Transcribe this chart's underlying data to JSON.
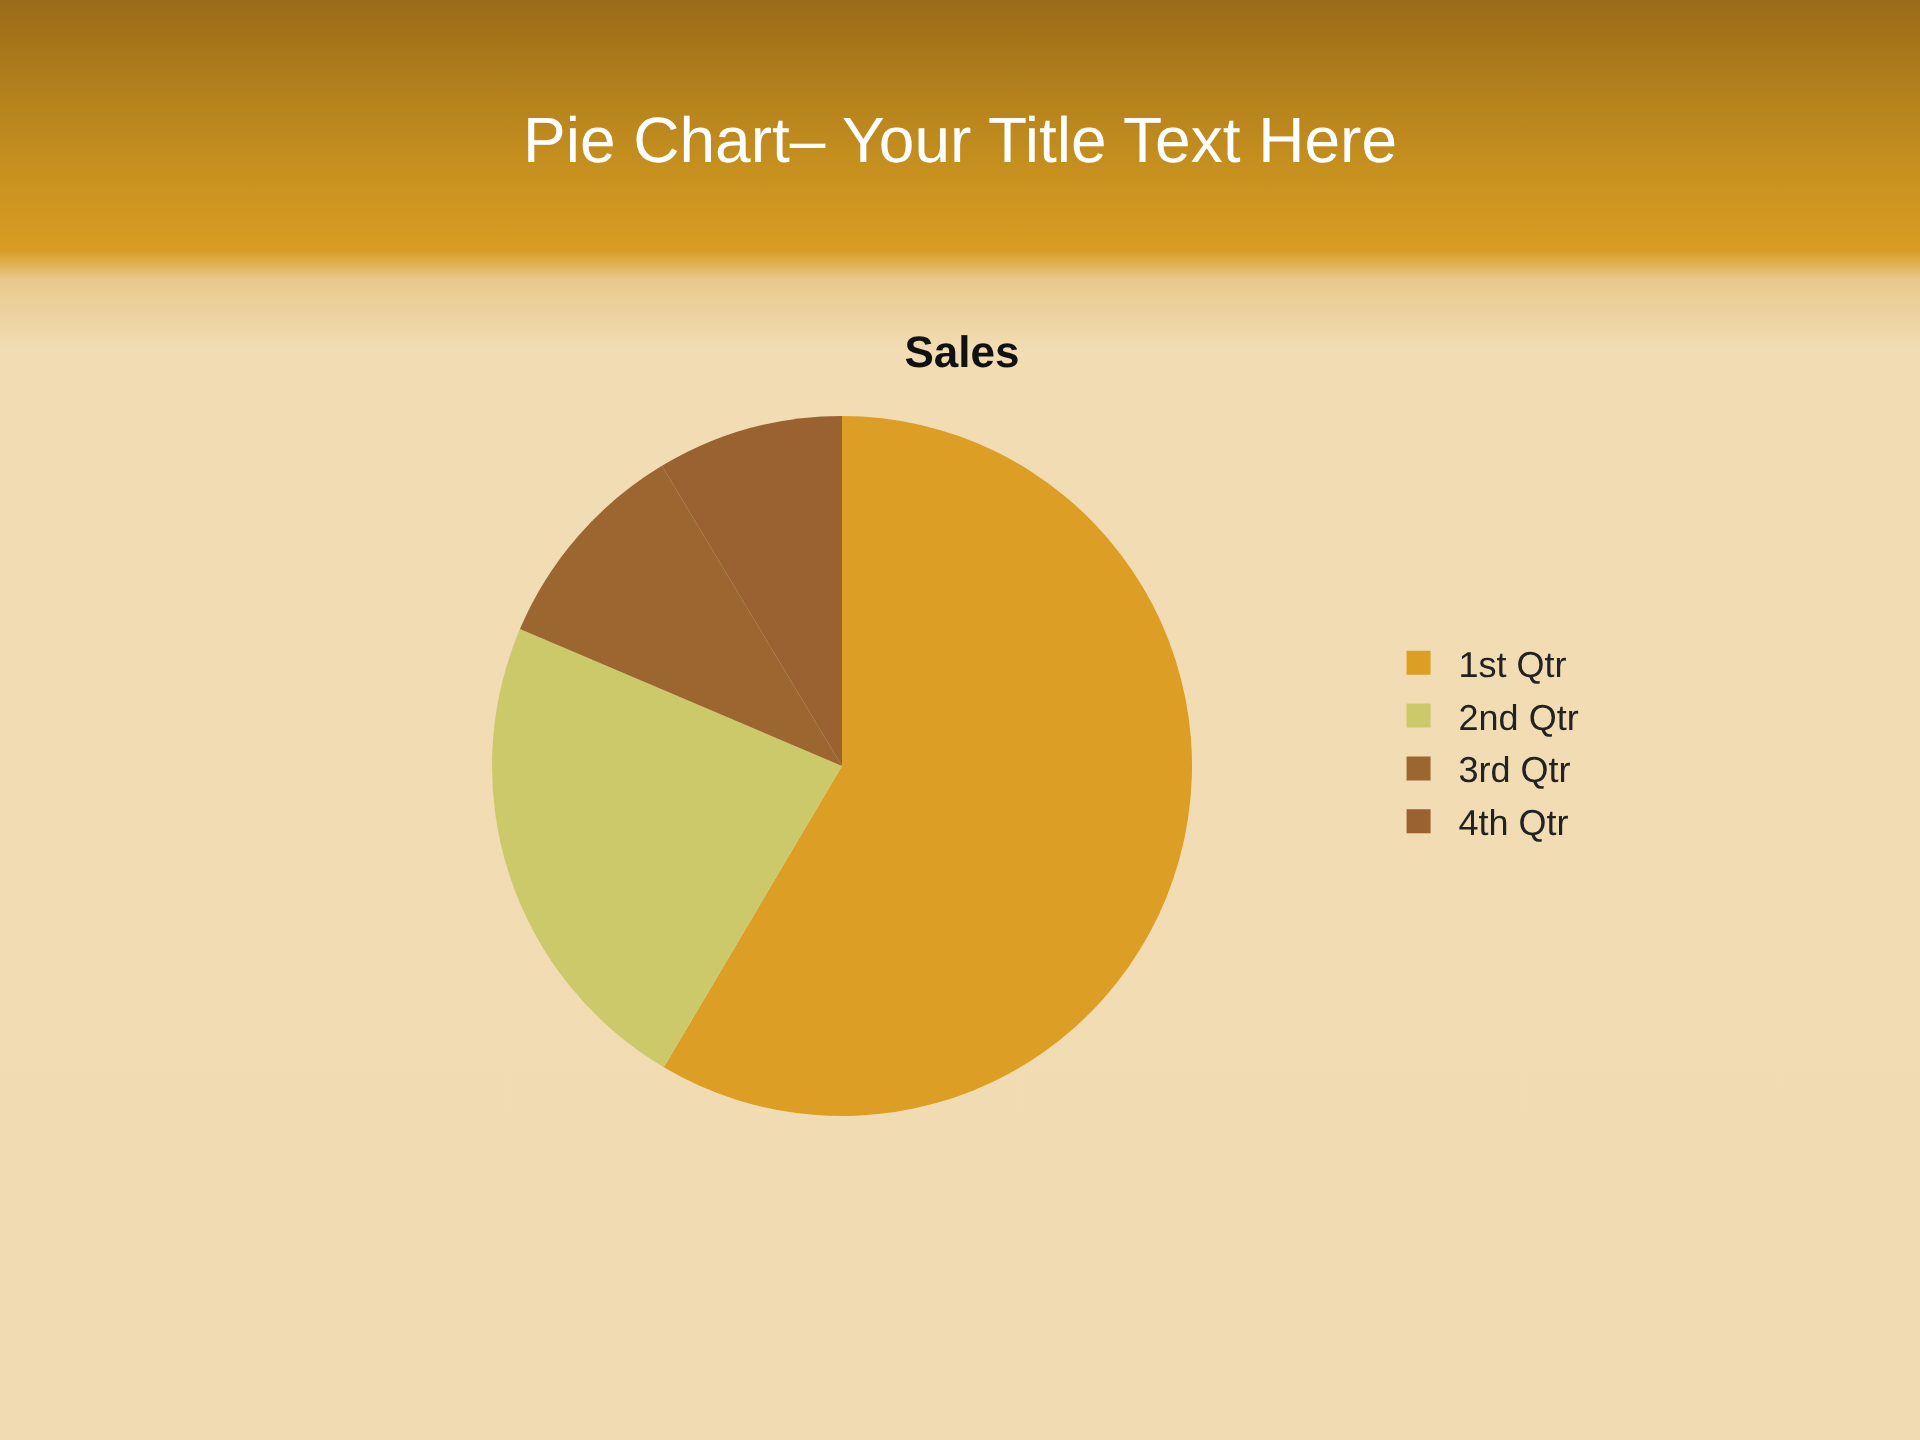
{
  "chart_data": {
    "type": "pie",
    "title": "Pie Chart– Your Title Text Here",
    "subtitle": "Sales",
    "categories": [
      "1st Qtr",
      "2nd Qtr",
      "3rd Qtr",
      "4th Qtr"
    ],
    "values": [
      58.5,
      22.9,
      10.0,
      8.6
    ],
    "colors": [
      "#dc9e24",
      "#ccc96a",
      "#9c6630",
      "#9a6231"
    ],
    "legend": "right"
  }
}
